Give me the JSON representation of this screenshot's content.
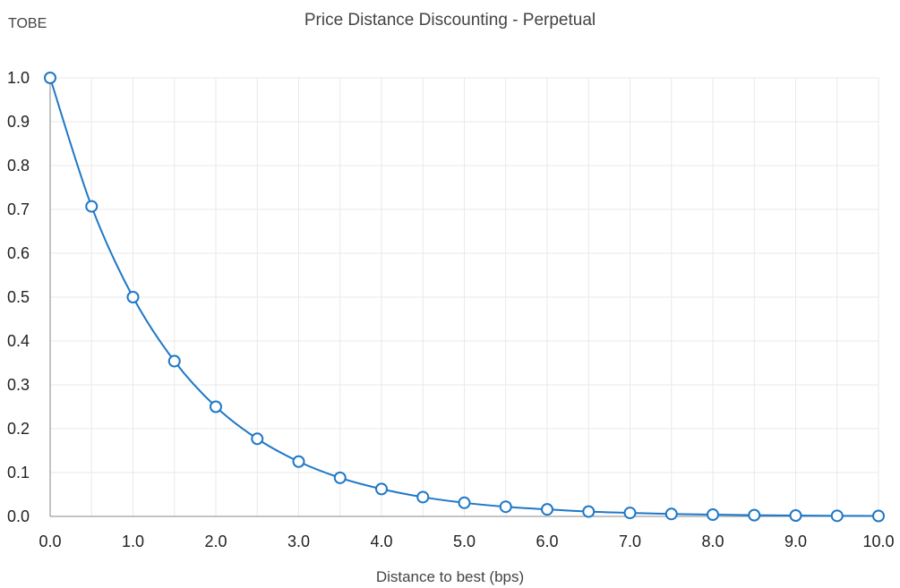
{
  "chart_data": {
    "type": "line",
    "title": "Price Distance Discounting - Perpetual",
    "xlabel": "Distance to best (bps)",
    "ylabel": "TOBE",
    "xlim": [
      0,
      10
    ],
    "ylim": [
      0,
      1
    ],
    "xticks": [
      "0.0",
      "1.0",
      "2.0",
      "3.0",
      "4.0",
      "5.0",
      "6.0",
      "7.0",
      "8.0",
      "9.0",
      "10.0"
    ],
    "yticks": [
      "0.0",
      "0.1",
      "0.2",
      "0.3",
      "0.4",
      "0.5",
      "0.6",
      "0.7",
      "0.8",
      "0.9",
      "1.0"
    ],
    "grid": true,
    "color": "#1f78c8",
    "series": [
      {
        "x": [
          0,
          0.5,
          1,
          1.5,
          2,
          2.5,
          3,
          3.5,
          4,
          4.5,
          5,
          5.5,
          6,
          6.5,
          7,
          7.5,
          8,
          8.5,
          9,
          9.5,
          10
        ],
        "values": [
          1.0,
          0.707,
          0.5,
          0.354,
          0.25,
          0.177,
          0.125,
          0.088,
          0.0625,
          0.044,
          0.031,
          0.022,
          0.016,
          0.011,
          0.008,
          0.0055,
          0.004,
          0.0028,
          0.002,
          0.0014,
          0.001
        ]
      }
    ]
  }
}
